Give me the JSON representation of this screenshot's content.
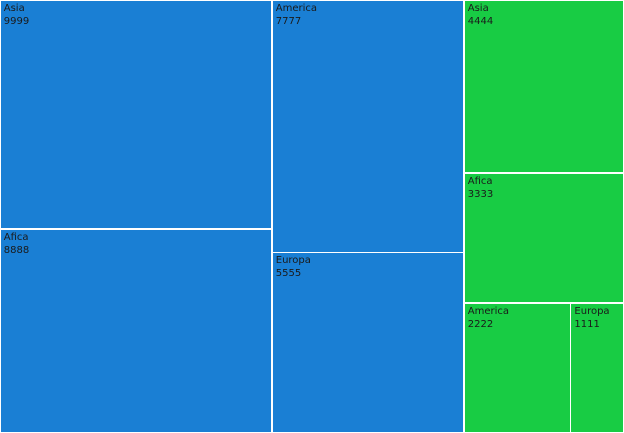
{
  "chart_data": {
    "type": "treemap",
    "groups": [
      {
        "color": "#1a7fd4",
        "items": [
          {
            "label": "Asia",
            "value": 9999
          },
          {
            "label": "Afica",
            "value": 8888
          },
          {
            "label": "America",
            "value": 7777
          },
          {
            "label": "Europa",
            "value": 5555
          }
        ]
      },
      {
        "color": "#18cc44",
        "items": [
          {
            "label": "Asia",
            "value": 4444
          },
          {
            "label": "Afica",
            "value": 3333
          },
          {
            "label": "America",
            "value": 2222
          },
          {
            "label": "Europa",
            "value": 1111
          }
        ]
      }
    ]
  }
}
